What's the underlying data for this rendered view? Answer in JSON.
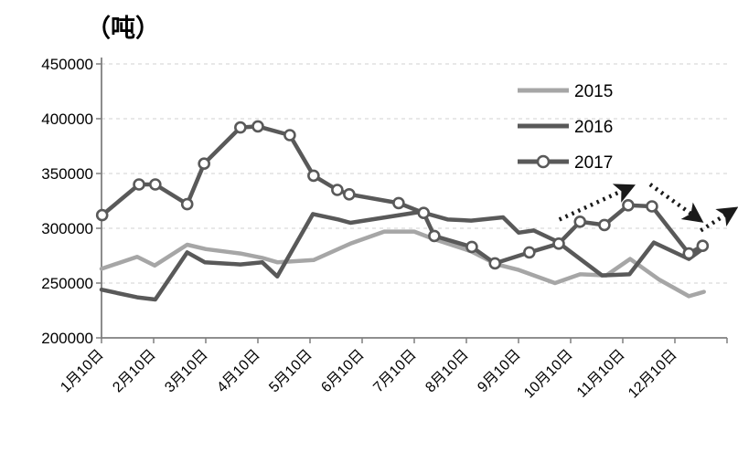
{
  "chart_data": {
    "type": "line",
    "title": "（吨）",
    "unit_label": "（吨）",
    "grid": "horizontal-dashed",
    "legend_position": "inside-top-right",
    "y_axis": {
      "min": 200000,
      "max": 450000,
      "tick_step": 50000,
      "tick_labels": [
        "450000",
        "400000",
        "350000",
        "300000",
        "250000",
        "200000"
      ]
    },
    "x_axis": {
      "tick_labels": [
        "1月10日",
        "2月10日",
        "3月10日",
        "4月10日",
        "5月10日",
        "6月10日",
        "7月10日",
        "8月10日",
        "9月10日",
        "10月10日",
        "11月10日",
        "12月10日"
      ]
    },
    "series": [
      {
        "name": "2015",
        "color": "#a6a6a6",
        "marker": false,
        "points": [
          [
            0.0,
            263000
          ],
          [
            0.057,
            274000
          ],
          [
            0.085,
            266000
          ],
          [
            0.137,
            285000
          ],
          [
            0.167,
            281000
          ],
          [
            0.222,
            277000
          ],
          [
            0.257,
            273000
          ],
          [
            0.281,
            269000
          ],
          [
            0.339,
            271000
          ],
          [
            0.398,
            286000
          ],
          [
            0.452,
            297000
          ],
          [
            0.5,
            297000
          ],
          [
            0.532,
            290000
          ],
          [
            0.591,
            279000
          ],
          [
            0.632,
            267000
          ],
          [
            0.667,
            262000
          ],
          [
            0.725,
            250000
          ],
          [
            0.765,
            258000
          ],
          [
            0.807,
            257000
          ],
          [
            0.845,
            272000
          ],
          [
            0.892,
            253000
          ],
          [
            0.939,
            238000
          ],
          [
            0.963,
            242000
          ]
        ]
      },
      {
        "name": "2016",
        "color": "#595959",
        "marker": false,
        "points": [
          [
            0.0,
            244000
          ],
          [
            0.057,
            237000
          ],
          [
            0.086,
            235000
          ],
          [
            0.137,
            278000
          ],
          [
            0.165,
            269000
          ],
          [
            0.222,
            267000
          ],
          [
            0.257,
            269000
          ],
          [
            0.281,
            256000
          ],
          [
            0.338,
            313000
          ],
          [
            0.379,
            308000
          ],
          [
            0.398,
            305000
          ],
          [
            0.51,
            315000
          ],
          [
            0.554,
            308000
          ],
          [
            0.591,
            307000
          ],
          [
            0.642,
            310000
          ],
          [
            0.667,
            296000
          ],
          [
            0.691,
            298000
          ],
          [
            0.728,
            288000
          ],
          [
            0.8,
            257000
          ],
          [
            0.844,
            258000
          ],
          [
            0.883,
            287000
          ],
          [
            0.939,
            272000
          ],
          [
            0.963,
            282000
          ]
        ]
      },
      {
        "name": "2017",
        "color": "#595959",
        "marker": true,
        "marker_fill": "#ffffff",
        "points": [
          [
            0.001,
            312000
          ],
          [
            0.06,
            340000
          ],
          [
            0.086,
            340000
          ],
          [
            0.137,
            322000
          ],
          [
            0.164,
            359000
          ],
          [
            0.222,
            392000
          ],
          [
            0.25,
            393000
          ],
          [
            0.301,
            385000
          ],
          [
            0.339,
            348000
          ],
          [
            0.377,
            335000
          ],
          [
            0.396,
            331000
          ],
          [
            0.475,
            323000
          ],
          [
            0.515,
            314000
          ],
          [
            0.532,
            293000
          ],
          [
            0.592,
            283000
          ],
          [
            0.629,
            268000
          ],
          [
            0.684,
            278000
          ],
          [
            0.731,
            286000
          ],
          [
            0.765,
            306000
          ],
          [
            0.804,
            303000
          ],
          [
            0.842,
            321000
          ],
          [
            0.88,
            320000
          ],
          [
            0.939,
            277000
          ],
          [
            0.961,
            284000
          ]
        ]
      }
    ],
    "annotations": {
      "arrows": [
        {
          "from": [
            0.732,
            308000
          ],
          "to": [
            0.843,
            337000
          ]
        },
        {
          "from": [
            0.877,
            340000
          ],
          "to": [
            0.953,
            309000
          ]
        },
        {
          "from": [
            0.958,
            298000
          ],
          "to": [
            1.008,
            316000
          ]
        }
      ],
      "arrow_color": "#1a1a1a"
    },
    "axis_color": "#7f7f7f",
    "gridline_color": "#d9d9d9"
  }
}
